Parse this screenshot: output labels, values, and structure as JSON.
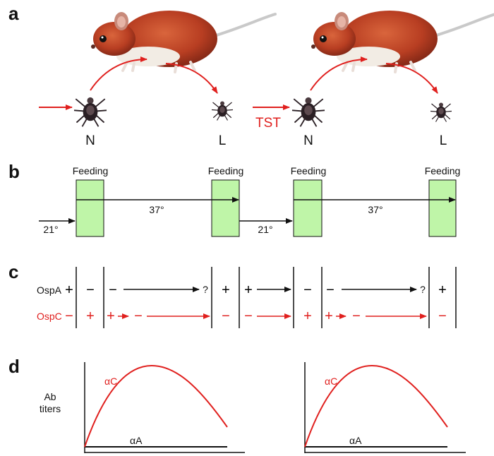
{
  "colors": {
    "accent_red": "#e0201e",
    "feeding_green": "#bff5a8",
    "mouse_fur": "#b83e22",
    "tick_body": "#2a1f24"
  },
  "icons": [
    "mouse-illustration",
    "nymph-tick-icon",
    "larva-tick-icon"
  ],
  "panel_a": {
    "label": "a",
    "stage_nymph": "N",
    "stage_larva": "L",
    "transfer_label": "TST"
  },
  "panel_b": {
    "label": "b",
    "feeding": "Feeding",
    "temp_ambient": "21°",
    "temp_host": "37°"
  },
  "panel_c": {
    "label": "c",
    "row_a_label": "OspA",
    "row_c_label": "OspC",
    "row_a_prefix": "+",
    "row_c_prefix": "−",
    "row_a_cycle": [
      "−",
      "−",
      "?",
      "+",
      "+",
      "−",
      "−",
      "?",
      "+"
    ],
    "row_c_cycle": [
      "+",
      "+",
      "−",
      "−",
      "−",
      "+",
      "+",
      "−",
      "−"
    ]
  },
  "panel_d": {
    "label": "d",
    "ylabel_line1": "Ab",
    "ylabel_line2": "titers",
    "curve_c": "αC",
    "curve_a": "αA"
  }
}
